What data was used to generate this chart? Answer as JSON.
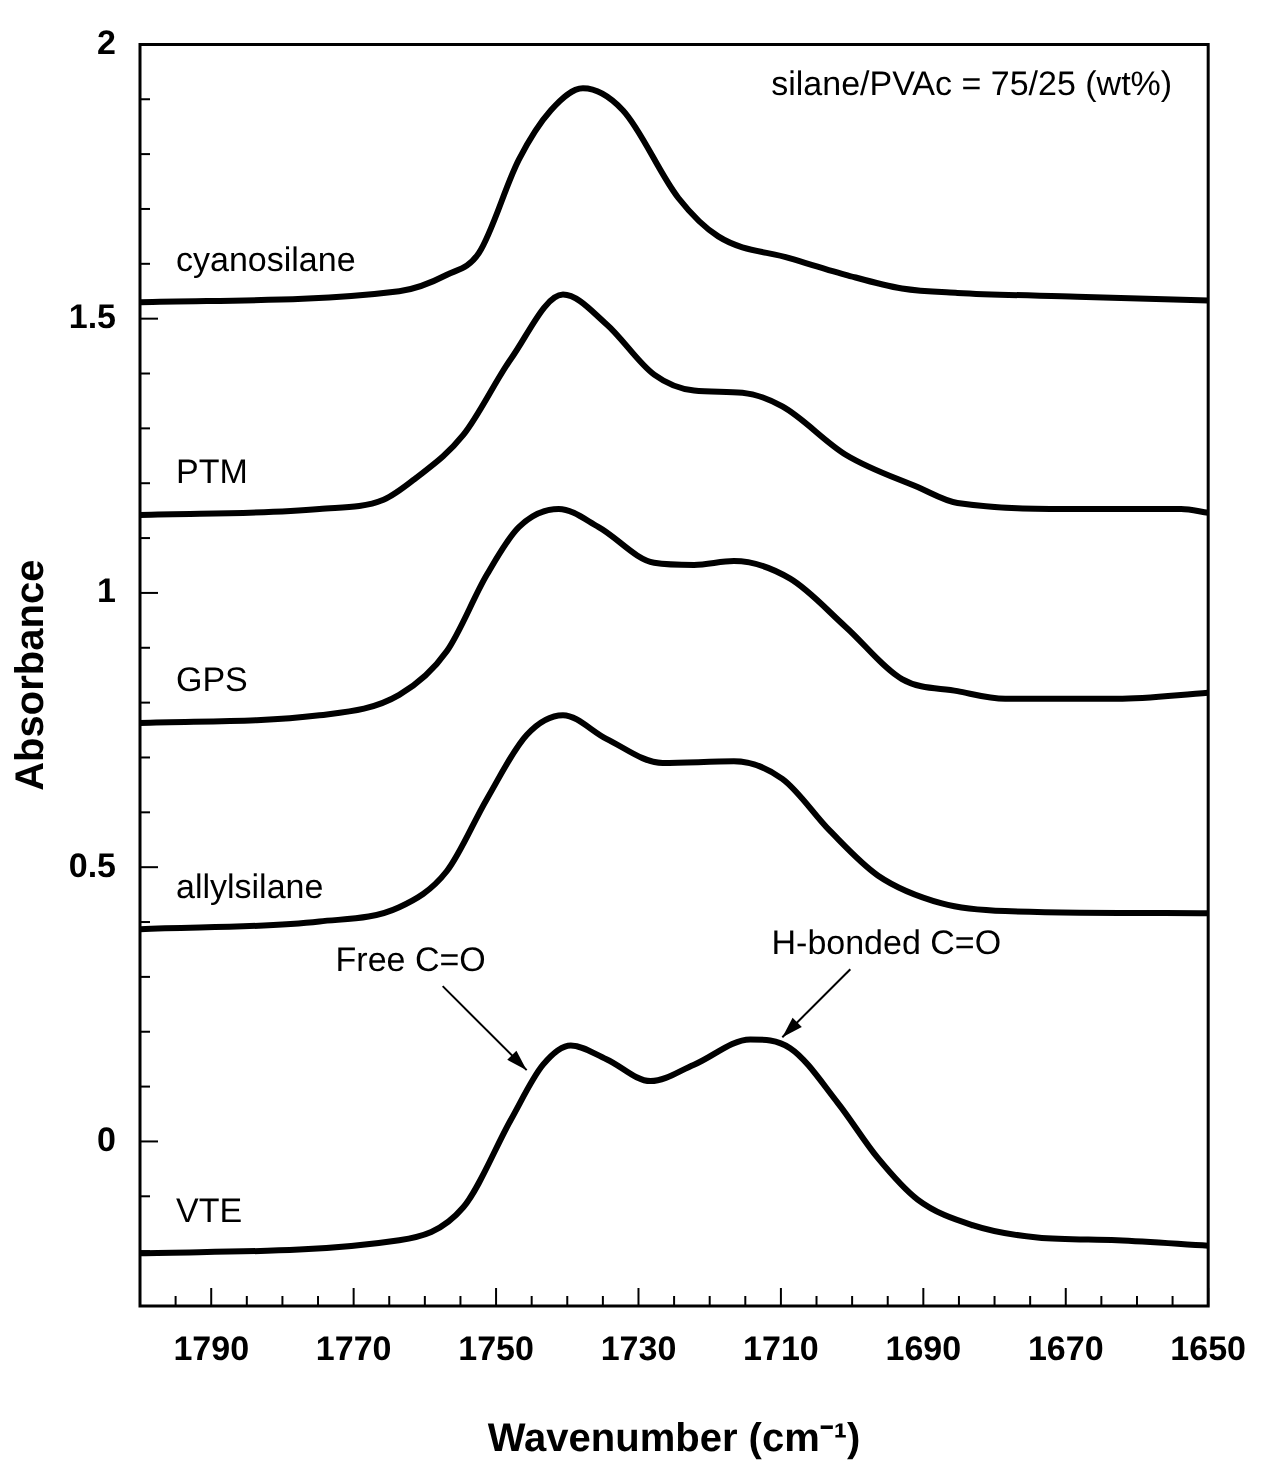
{
  "chart_data": {
    "type": "line",
    "xlabel": "Wavenumber (cm⁻¹)",
    "ylabel": "Absorbance",
    "annotations": [
      "silane/PVAc = 75/25 (wt%)",
      {
        "text": "Free C=O",
        "x": 1745.7,
        "y": 0.13
      },
      {
        "text": "H-bonded C=O",
        "x": 1709.8,
        "y": 0.19
      }
    ],
    "xlim": [
      1800,
      1650
    ],
    "ylim": [
      -0.3,
      2
    ],
    "xticks": [
      {
        "value": 1795,
        "label": null
      },
      1790,
      {
        "value": 1785,
        "label": null
      },
      {
        "value": 1780,
        "label": null
      },
      {
        "value": 1775,
        "label": null
      },
      1770,
      {
        "value": 1765,
        "label": null
      },
      {
        "value": 1760,
        "label": null
      },
      {
        "value": 1755,
        "label": null
      },
      1750,
      {
        "value": 1745,
        "label": null
      },
      {
        "value": 1740,
        "label": null
      },
      {
        "value": 1735,
        "label": null
      },
      1730,
      {
        "value": 1725,
        "label": null
      },
      {
        "value": 1720,
        "label": null
      },
      {
        "value": 1715,
        "label": null
      },
      1710,
      {
        "value": 1705,
        "label": null
      },
      {
        "value": 1700,
        "label": null
      },
      {
        "value": 1695,
        "label": null
      },
      1690,
      {
        "value": 1685,
        "label": null
      },
      {
        "value": 1680,
        "label": null
      },
      {
        "value": 1675,
        "label": null
      },
      1670,
      {
        "value": 1665,
        "label": null
      },
      {
        "value": 1660,
        "label": null
      },
      {
        "value": 1655,
        "label": null
      },
      1650
    ],
    "yticks": [
      {
        "value": -0.2,
        "label": null
      },
      {
        "value": -0.1,
        "label": null
      },
      0,
      {
        "value": 0.1,
        "label": null
      },
      {
        "value": 0.2,
        "label": null
      },
      {
        "value": 0.3,
        "label": null
      },
      {
        "value": 0.4,
        "label": null
      },
      0.5,
      {
        "value": 0.6,
        "label": null
      },
      {
        "value": 0.7,
        "label": null
      },
      {
        "value": 0.8,
        "label": null
      },
      {
        "value": 0.9,
        "label": null
      },
      1,
      {
        "value": 1.1,
        "label": null
      },
      {
        "value": 1.2,
        "label": null
      },
      {
        "value": 1.3,
        "label": null
      },
      {
        "value": 1.4,
        "label": null
      },
      1.5,
      {
        "value": 1.6,
        "label": null
      },
      {
        "value": 1.7,
        "label": null
      },
      {
        "value": 1.8,
        "label": null
      },
      {
        "value": 1.9,
        "label": null
      },
      2
    ],
    "grid": false,
    "legend": false,
    "marker": "none",
    "line_style": "solid",
    "series": [
      {
        "name": "cyanosilane",
        "color": "#000000",
        "x": [
          1800,
          1763.6,
          1756.9,
          1752.4,
          1746.8,
          1742.3,
          1737.8,
          1732.2,
          1724.4,
          1718.8,
          1708.7,
          1700.9,
          1693,
          1685.2,
          1668.4,
          1650
        ],
        "values": [
          1.53,
          1.55,
          1.58,
          1.62,
          1.79,
          1.88,
          1.92,
          1.88,
          1.72,
          1.65,
          1.61,
          1.58,
          1.555,
          1.547,
          1.54,
          1.533
        ]
      },
      {
        "name": "PTM",
        "color": "#000000",
        "x": [
          1800,
          1774.8,
          1765.8,
          1761.4,
          1754.6,
          1747.9,
          1740.6,
          1734.5,
          1727.8,
          1722.2,
          1715.4,
          1709.8,
          1700.9,
          1690.8,
          1685.2,
          1668.4,
          1653.8,
          1650
        ],
        "values": [
          1.142,
          1.153,
          1.17,
          1.208,
          1.288,
          1.427,
          1.544,
          1.49,
          1.398,
          1.369,
          1.365,
          1.34,
          1.252,
          1.193,
          1.164,
          1.153,
          1.153,
          1.146
        ]
      },
      {
        "name": "GPS",
        "color": "#000000",
        "x": [
          1800,
          1774.8,
          1763.6,
          1756.9,
          1751.3,
          1746.8,
          1741.2,
          1735.6,
          1727.8,
          1722.2,
          1716.6,
          1708.7,
          1700.9,
          1693,
          1685.2,
          1678.5,
          1662.8,
          1650
        ],
        "values": [
          0.763,
          0.777,
          0.814,
          0.894,
          1.033,
          1.12,
          1.153,
          1.12,
          1.055,
          1.051,
          1.058,
          1.026,
          0.938,
          0.843,
          0.821,
          0.807,
          0.807,
          0.818
        ]
      },
      {
        "name": "allylsilane",
        "color": "#000000",
        "x": [
          1800,
          1774.8,
          1763.6,
          1756.9,
          1751.3,
          1745.7,
          1740.6,
          1734.5,
          1726.6,
          1716.6,
          1709.8,
          1703.1,
          1696.4,
          1687.4,
          1678.5,
          1650
        ],
        "values": [
          0.387,
          0.401,
          0.427,
          0.493,
          0.624,
          0.741,
          0.777,
          0.734,
          0.69,
          0.693,
          0.661,
          0.566,
          0.485,
          0.434,
          0.42,
          0.416
        ]
      },
      {
        "name": "VTE",
        "color": "#000000",
        "x": [
          1800,
          1763.6,
          1754.6,
          1747.9,
          1743.4,
          1739.5,
          1734.5,
          1728.3,
          1722.2,
          1714.3,
          1708.7,
          1702,
          1696.4,
          1690.8,
          1683,
          1674,
          1662.8,
          1650
        ],
        "values": [
          -0.204,
          -0.18,
          -0.12,
          0.04,
          0.14,
          0.175,
          0.15,
          0.11,
          0.14,
          0.186,
          0.17,
          0.07,
          -0.03,
          -0.106,
          -0.153,
          -0.175,
          -0.18,
          -0.19
        ]
      }
    ]
  }
}
